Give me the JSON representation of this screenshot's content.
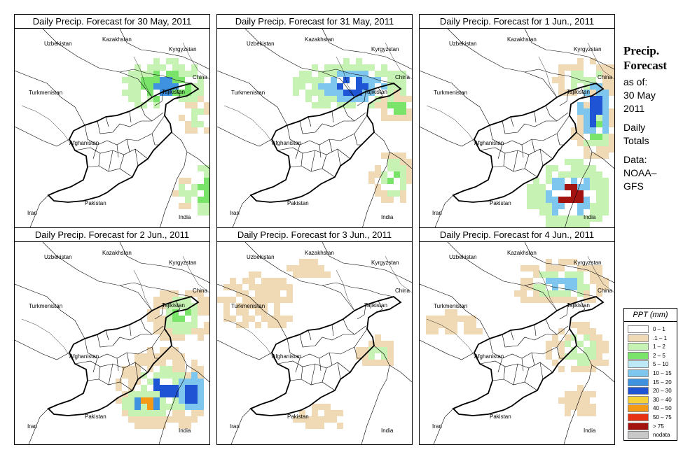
{
  "panels": [
    {
      "title": "Daily Precip. Forecast for  30 May, 2011",
      "pattern": "p1"
    },
    {
      "title": "Daily Precip. Forecast for  31 May, 2011",
      "pattern": "p2"
    },
    {
      "title": "Daily Precip. Forecast for  1 Jun., 2011",
      "pattern": "p3"
    },
    {
      "title": "Daily Precip. Forecast for  2 Jun., 2011",
      "pattern": "p4"
    },
    {
      "title": "Daily Precip. Forecast for  3 Jun., 2011",
      "pattern": "p5"
    },
    {
      "title": "Daily Precip. Forecast for  4 Jun., 2011",
      "pattern": "p6"
    }
  ],
  "map_labels": {
    "uzbekistan": "Uzbekistan",
    "kazakhstan": "Kazakhstan",
    "kyrgyzstan": "Kyrgyzstan",
    "turkmenistan": "Turkmenistan",
    "tajikistan": "Tajikistan",
    "china": "China",
    "afghanistan": "Afghanistan",
    "pakistan": "Pakistan",
    "iran": "Iran",
    "india": "India"
  },
  "sidebar": {
    "title_line1": "Precip.",
    "title_line2": "Forecast",
    "asof_line1": "as of:",
    "asof_line2": "30 May",
    "asof_line3": "2011",
    "totals_line1": "Daily",
    "totals_line2": "Totals",
    "source_line1": "Data:",
    "source_line2": "NOAA–",
    "source_line3": "GFS"
  },
  "legend": {
    "title": "PPT (mm)",
    "entries": [
      {
        "label": "0 – 1",
        "color": "#ffffff"
      },
      {
        "label": ".1 – 1",
        "color": "#f0d9b5"
      },
      {
        "label": "1 – 2",
        "color": "#c6f2b4"
      },
      {
        "label": "2 – 5",
        "color": "#79e36a"
      },
      {
        "label": "5 – 10",
        "color": "#bde9f7"
      },
      {
        "label": "10 – 15",
        "color": "#7fc6ee"
      },
      {
        "label": "15 – 20",
        "color": "#3e92e0"
      },
      {
        "label": "20 – 30",
        "color": "#1f55d4"
      },
      {
        "label": "30 – 40",
        "color": "#f5d23a"
      },
      {
        "label": "40 – 50",
        "color": "#f59a16"
      },
      {
        "label": "50 – 75",
        "color": "#e63412"
      },
      {
        "label": "> 75",
        "color": "#a31410"
      },
      {
        "label": "nodata",
        "color": "#c8c8c8"
      }
    ]
  }
}
